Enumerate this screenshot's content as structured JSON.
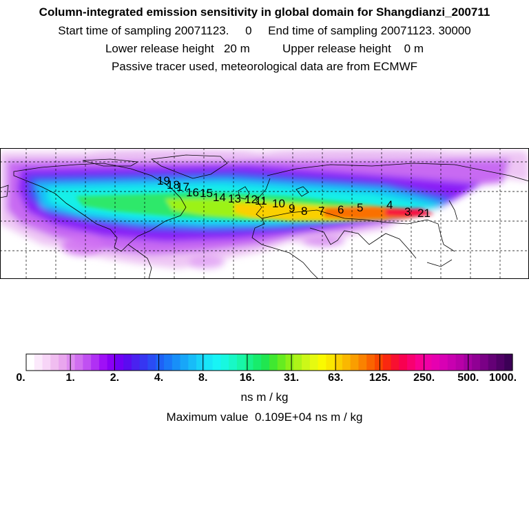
{
  "header": {
    "title": "Column-integrated emission sensitivity in global domain for Shangdianzi_200711",
    "sampling": "Start time of sampling 20071123.     0     End time of sampling 20071123. 30000",
    "release": "Lower release height   20 m          Upper release height    0 m",
    "tracer": "Passive tracer used, meteorological data are from ECMWF"
  },
  "trajectory_labels": [
    "21",
    "3",
    "4",
    "5",
    "6",
    "7",
    "8",
    "9",
    "10",
    "11",
    "12",
    "13",
    "14",
    "15",
    "16",
    "17",
    "18",
    "19"
  ],
  "colorbar": {
    "units": "ns m / kg",
    "tick_labels": [
      "0.",
      "1.",
      "2.",
      "4.",
      "8.",
      "16.",
      "31.",
      "63.",
      "125.",
      "250.",
      "500.",
      "1000."
    ],
    "colors": [
      "#ffffff",
      "#fbe9fb",
      "#f7d5f7",
      "#f0bdf0",
      "#e9a6ee",
      "#de8cf0",
      "#d06ef0",
      "#c050f2",
      "#b030f4",
      "#9f10f6",
      "#8a00f5",
      "#7000f5",
      "#5a0cf0",
      "#4a22f0",
      "#3636f2",
      "#2a4cf4",
      "#1e62f6",
      "#1a78f8",
      "#188ff8",
      "#18a6f8",
      "#18bcf8",
      "#18d2f8",
      "#18e6f8",
      "#18f4f6",
      "#18f8e0",
      "#18f8c6",
      "#18f6a8",
      "#18f28a",
      "#18ec6c",
      "#20e650",
      "#40e830",
      "#66ec20",
      "#8cf018",
      "#aef418",
      "#ccf818",
      "#e6fa10",
      "#fafa00",
      "#fae800",
      "#fad000",
      "#fab800",
      "#fa9e00",
      "#fa8200",
      "#fa6400",
      "#fa4600",
      "#fa2810",
      "#f81030",
      "#f80050",
      "#f80070",
      "#f80090",
      "#f000a6",
      "#e600b0",
      "#d800b4",
      "#c800b0",
      "#b800a8",
      "#a400a0",
      "#900094",
      "#7a0086",
      "#640076",
      "#500066",
      "#3c0056"
    ]
  },
  "max_value": "Maximum value  0.109E+04 ns m / kg"
}
